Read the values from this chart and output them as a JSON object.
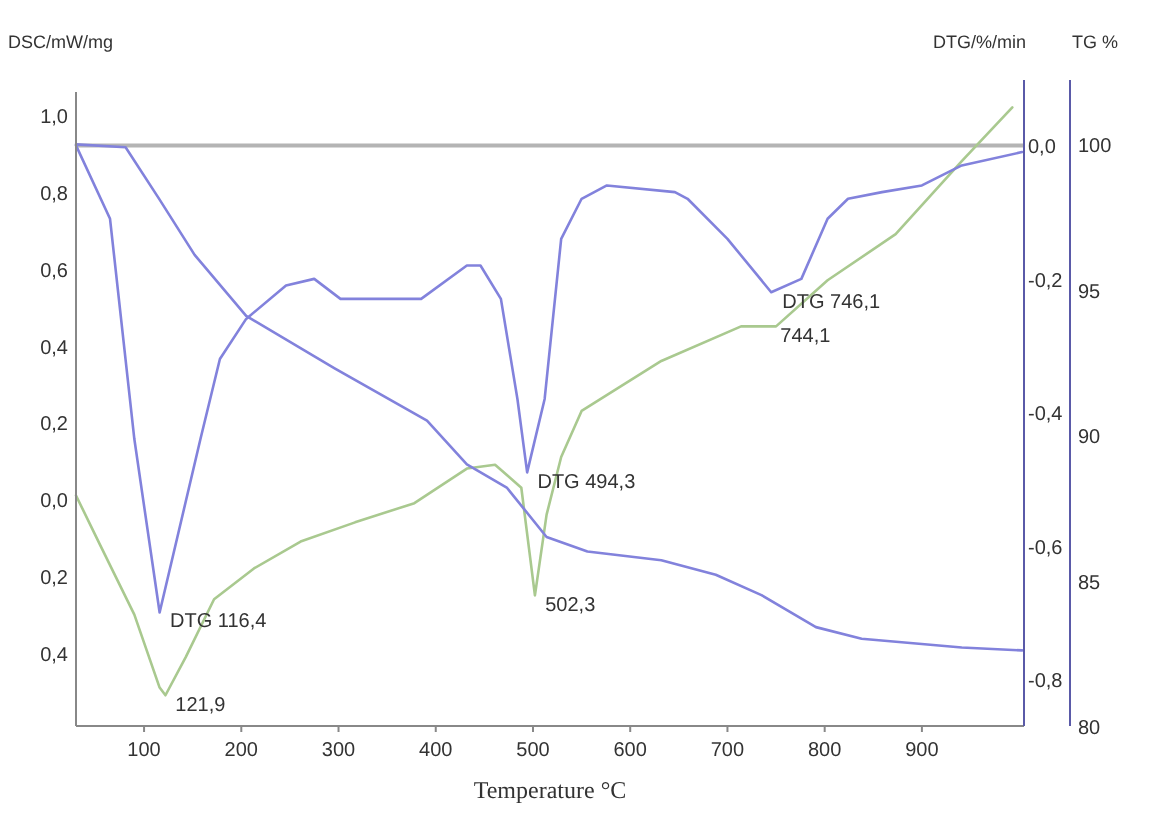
{
  "chart_data": {
    "type": "line",
    "xlabel": "Temperature °C",
    "ylabel": "DSC/mW/mg",
    "y2label": "DTG/%/min",
    "y3label": "TG %",
    "xlim": [
      30,
      1005
    ],
    "xticks": [
      100,
      200,
      300,
      400,
      500,
      600,
      700,
      800,
      900
    ],
    "ylim": [
      -0.59,
      1.06
    ],
    "yticks": [
      {
        "value": 1.0,
        "label": "1,0"
      },
      {
        "value": 0.8,
        "label": "0,8"
      },
      {
        "value": 0.6,
        "label": "0,6"
      },
      {
        "value": 0.4,
        "label": "0,4"
      },
      {
        "value": 0.2,
        "label": "0,2"
      },
      {
        "value": 0,
        "label": "0,0"
      },
      {
        "value": -0.2,
        "label": "0,2"
      },
      {
        "value": -0.4,
        "label": "0,4"
      }
    ],
    "y2lim": [
      -0.87,
      0.08
    ],
    "y2ticks": [
      {
        "value": 0,
        "label": "0,0"
      },
      {
        "value": -0.2,
        "label": "-0,2"
      },
      {
        "value": -0.4,
        "label": "-0,4"
      },
      {
        "value": -0.6,
        "label": "-0,6"
      },
      {
        "value": -0.8,
        "label": "-0,8"
      }
    ],
    "y3lim": [
      80,
      101.8
    ],
    "y3ticks": [
      100,
      95,
      90,
      85,
      80
    ],
    "grid": false,
    "line_style": "solid",
    "marker": "none",
    "ref_lines": [
      {
        "axis": "y2",
        "value": 0,
        "color": "#b4b4b4"
      }
    ],
    "series": [
      {
        "color": "#a9c98f",
        "x": [
          30,
          55,
          90,
          116,
          122,
          143,
          172,
          213,
          261,
          317,
          378,
          432,
          461,
          488,
          502,
          514,
          529,
          550,
          632,
          714,
          750,
          803,
          873,
          941,
          993
        ],
        "values": [
          0.01,
          -0.12,
          -0.3,
          -0.49,
          -0.51,
          -0.41,
          -0.26,
          -0.18,
          -0.11,
          -0.06,
          -0.01,
          0.08,
          0.09,
          0.03,
          -0.25,
          -0.04,
          0.11,
          0.23,
          0.36,
          0.45,
          0.45,
          0.57,
          0.69,
          0.88,
          1.02
        ]
      },
      {
        "color": "#8282dc",
        "axis": "y2",
        "x": [
          30,
          65,
          90,
          116,
          158,
          178,
          205,
          246,
          275,
          302,
          385,
          432,
          446,
          467,
          484,
          494,
          512,
          529,
          550,
          576,
          646,
          659,
          700,
          745,
          776,
          803,
          824,
          859,
          900,
          941,
          1003
        ],
        "values": [
          0,
          -0.11,
          -0.44,
          -0.7,
          -0.44,
          -0.32,
          -0.26,
          -0.21,
          -0.2,
          -0.23,
          -0.23,
          -0.18,
          -0.18,
          -0.23,
          -0.38,
          -0.49,
          -0.38,
          -0.14,
          -0.08,
          -0.06,
          -0.07,
          -0.08,
          -0.14,
          -0.22,
          -0.2,
          -0.11,
          -0.08,
          -0.07,
          -0.06,
          -0.03,
          -0.01
        ]
      },
      {
        "color": "#8282dc",
        "axis": "y3",
        "x": [
          30,
          81,
          116,
          152,
          205,
          296,
          391,
          432,
          473,
          514,
          556,
          632,
          688,
          735,
          791,
          838,
          941,
          1003
        ],
        "values": [
          100,
          99.9,
          98.1,
          96.2,
          94.1,
          92.3,
          90.5,
          89.0,
          88.2,
          86.5,
          86.0,
          85.7,
          85.2,
          84.5,
          83.4,
          83.0,
          82.7,
          82.6
        ]
      }
    ],
    "annotations": [
      {
        "text": "DTG  116,4",
        "x": 116.4,
        "y": -0.29
      },
      {
        "text": "121,9",
        "x": 121.9,
        "y": -0.51
      },
      {
        "text": "DTG 494,3",
        "x": 494.3,
        "y": 0.07
      },
      {
        "text": "502,3",
        "x": 502.3,
        "y": -0.25
      },
      {
        "text": "DTG 746,1",
        "x": 746.1,
        "y": 0.54
      },
      {
        "text": "744,1",
        "x": 744.1,
        "y": 0.45
      }
    ]
  }
}
